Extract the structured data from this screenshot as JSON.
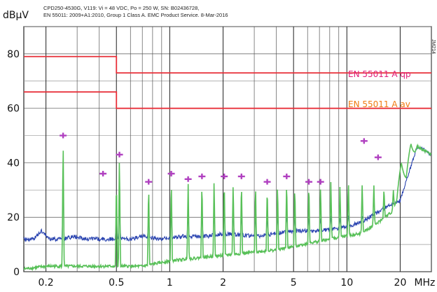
{
  "chart_data": {
    "type": "line",
    "title": "",
    "subtitle_lines": [
      "CPD250-4530G, V119: Vi = 48 VDC, Po = 250 W, SN: B02436728,",
      "EN 55011: 2009+A1:2010, Group 1 Class A. EMC Product Service. 8-Mar-2016"
    ],
    "ylabel": "dBµV",
    "xlabel": "MHz",
    "x_scale": "log",
    "xlim": [
      0.15,
      30
    ],
    "ylim": [
      0,
      90
    ],
    "grid": true,
    "y_ticks": [
      0,
      20,
      40,
      60,
      80
    ],
    "x_ticks": [
      {
        "value": 0.2,
        "label": "0.2"
      },
      {
        "value": 0.5,
        "label": "0.5"
      },
      {
        "value": 1,
        "label": "1"
      },
      {
        "value": 2,
        "label": "2"
      },
      {
        "value": 5,
        "label": "5"
      },
      {
        "value": 10,
        "label": "10"
      },
      {
        "value": 20,
        "label": "20"
      }
    ],
    "limit_lines": [
      {
        "name": "EN 55011 A qp",
        "color": "#e8303a",
        "label_color": "#e0207a",
        "segments": [
          {
            "x": [
              0.15,
              0.5
            ],
            "y": 79
          },
          {
            "x": [
              0.5,
              30
            ],
            "y": 73
          }
        ]
      },
      {
        "name": "EN 55011 A av",
        "color": "#e8303a",
        "label_color": "#f07a10",
        "segments": [
          {
            "x": [
              0.15,
              0.5
            ],
            "y": 66
          },
          {
            "x": [
              0.5,
              30
            ],
            "y": 60
          }
        ]
      }
    ],
    "side_code": "JM214",
    "series": [
      {
        "color": "#2a44b0",
        "baseline": [
          [
            0.15,
            12
          ],
          [
            0.17,
            12
          ],
          [
            0.19,
            15
          ],
          [
            0.21,
            12
          ],
          [
            0.25,
            12
          ],
          [
            0.29,
            13
          ],
          [
            0.33,
            12
          ],
          [
            0.4,
            12
          ],
          [
            0.5,
            12
          ],
          [
            0.6,
            12
          ],
          [
            0.7,
            13
          ],
          [
            0.9,
            12
          ],
          [
            1.2,
            13
          ],
          [
            1.6,
            13
          ],
          [
            2,
            14
          ],
          [
            3,
            13
          ],
          [
            4,
            14
          ],
          [
            5,
            15
          ],
          [
            7,
            15
          ],
          [
            9,
            16
          ],
          [
            12,
            18
          ],
          [
            15,
            22
          ],
          [
            18,
            25
          ],
          [
            20,
            26
          ],
          [
            22,
            35
          ],
          [
            25,
            46
          ],
          [
            30,
            43
          ]
        ]
      },
      {
        "color": "#58c058",
        "baseline": [
          [
            0.15,
            1
          ],
          [
            0.2,
            2
          ],
          [
            0.3,
            2
          ],
          [
            0.5,
            2
          ],
          [
            0.7,
            2
          ],
          [
            1,
            4
          ],
          [
            2,
            6
          ],
          [
            4,
            8
          ],
          [
            8,
            12
          ],
          [
            12,
            14
          ],
          [
            15,
            18
          ],
          [
            18,
            22
          ],
          [
            22,
            36
          ],
          [
            25,
            46
          ],
          [
            30,
            43
          ]
        ]
      }
    ],
    "peaks": [
      {
        "x": 0.25,
        "y": 49
      },
      {
        "x": 0.5,
        "y": 35
      },
      {
        "x": 0.52,
        "y": 43
      },
      {
        "x": 0.76,
        "y": 33
      },
      {
        "x": 1.02,
        "y": 35
      },
      {
        "x": 1.27,
        "y": 34
      },
      {
        "x": 1.52,
        "y": 34
      },
      {
        "x": 1.78,
        "y": 35
      },
      {
        "x": 2.03,
        "y": 35
      },
      {
        "x": 2.28,
        "y": 34
      },
      {
        "x": 2.54,
        "y": 34
      },
      {
        "x": 3.05,
        "y": 33
      },
      {
        "x": 3.55,
        "y": 32
      },
      {
        "x": 4.06,
        "y": 33
      },
      {
        "x": 4.57,
        "y": 34
      },
      {
        "x": 5.08,
        "y": 32
      },
      {
        "x": 6.1,
        "y": 33
      },
      {
        "x": 7.1,
        "y": 32
      },
      {
        "x": 8.12,
        "y": 33
      },
      {
        "x": 9.14,
        "y": 32
      },
      {
        "x": 10.2,
        "y": 34
      },
      {
        "x": 12.2,
        "y": 33
      },
      {
        "x": 14.2,
        "y": 32
      },
      {
        "x": 16.2,
        "y": 31
      },
      {
        "x": 18.3,
        "y": 30
      },
      {
        "x": 20.3,
        "y": 40
      },
      {
        "x": 23,
        "y": 47
      },
      {
        "x": 27.5,
        "y": 43
      }
    ],
    "markers_qp": [
      {
        "x": 0.25,
        "y": 50
      },
      {
        "x": 0.42,
        "y": 36
      },
      {
        "x": 0.52,
        "y": 43
      },
      {
        "x": 0.76,
        "y": 33
      },
      {
        "x": 1.02,
        "y": 36
      },
      {
        "x": 1.27,
        "y": 34
      },
      {
        "x": 1.52,
        "y": 35
      },
      {
        "x": 2.03,
        "y": 35
      },
      {
        "x": 2.54,
        "y": 35
      },
      {
        "x": 3.55,
        "y": 33
      },
      {
        "x": 4.57,
        "y": 35
      },
      {
        "x": 6.1,
        "y": 33
      },
      {
        "x": 7.1,
        "y": 33
      },
      {
        "x": 12.5,
        "y": 48
      },
      {
        "x": 15,
        "y": 42
      }
    ],
    "marker_color": "#b040c0"
  }
}
